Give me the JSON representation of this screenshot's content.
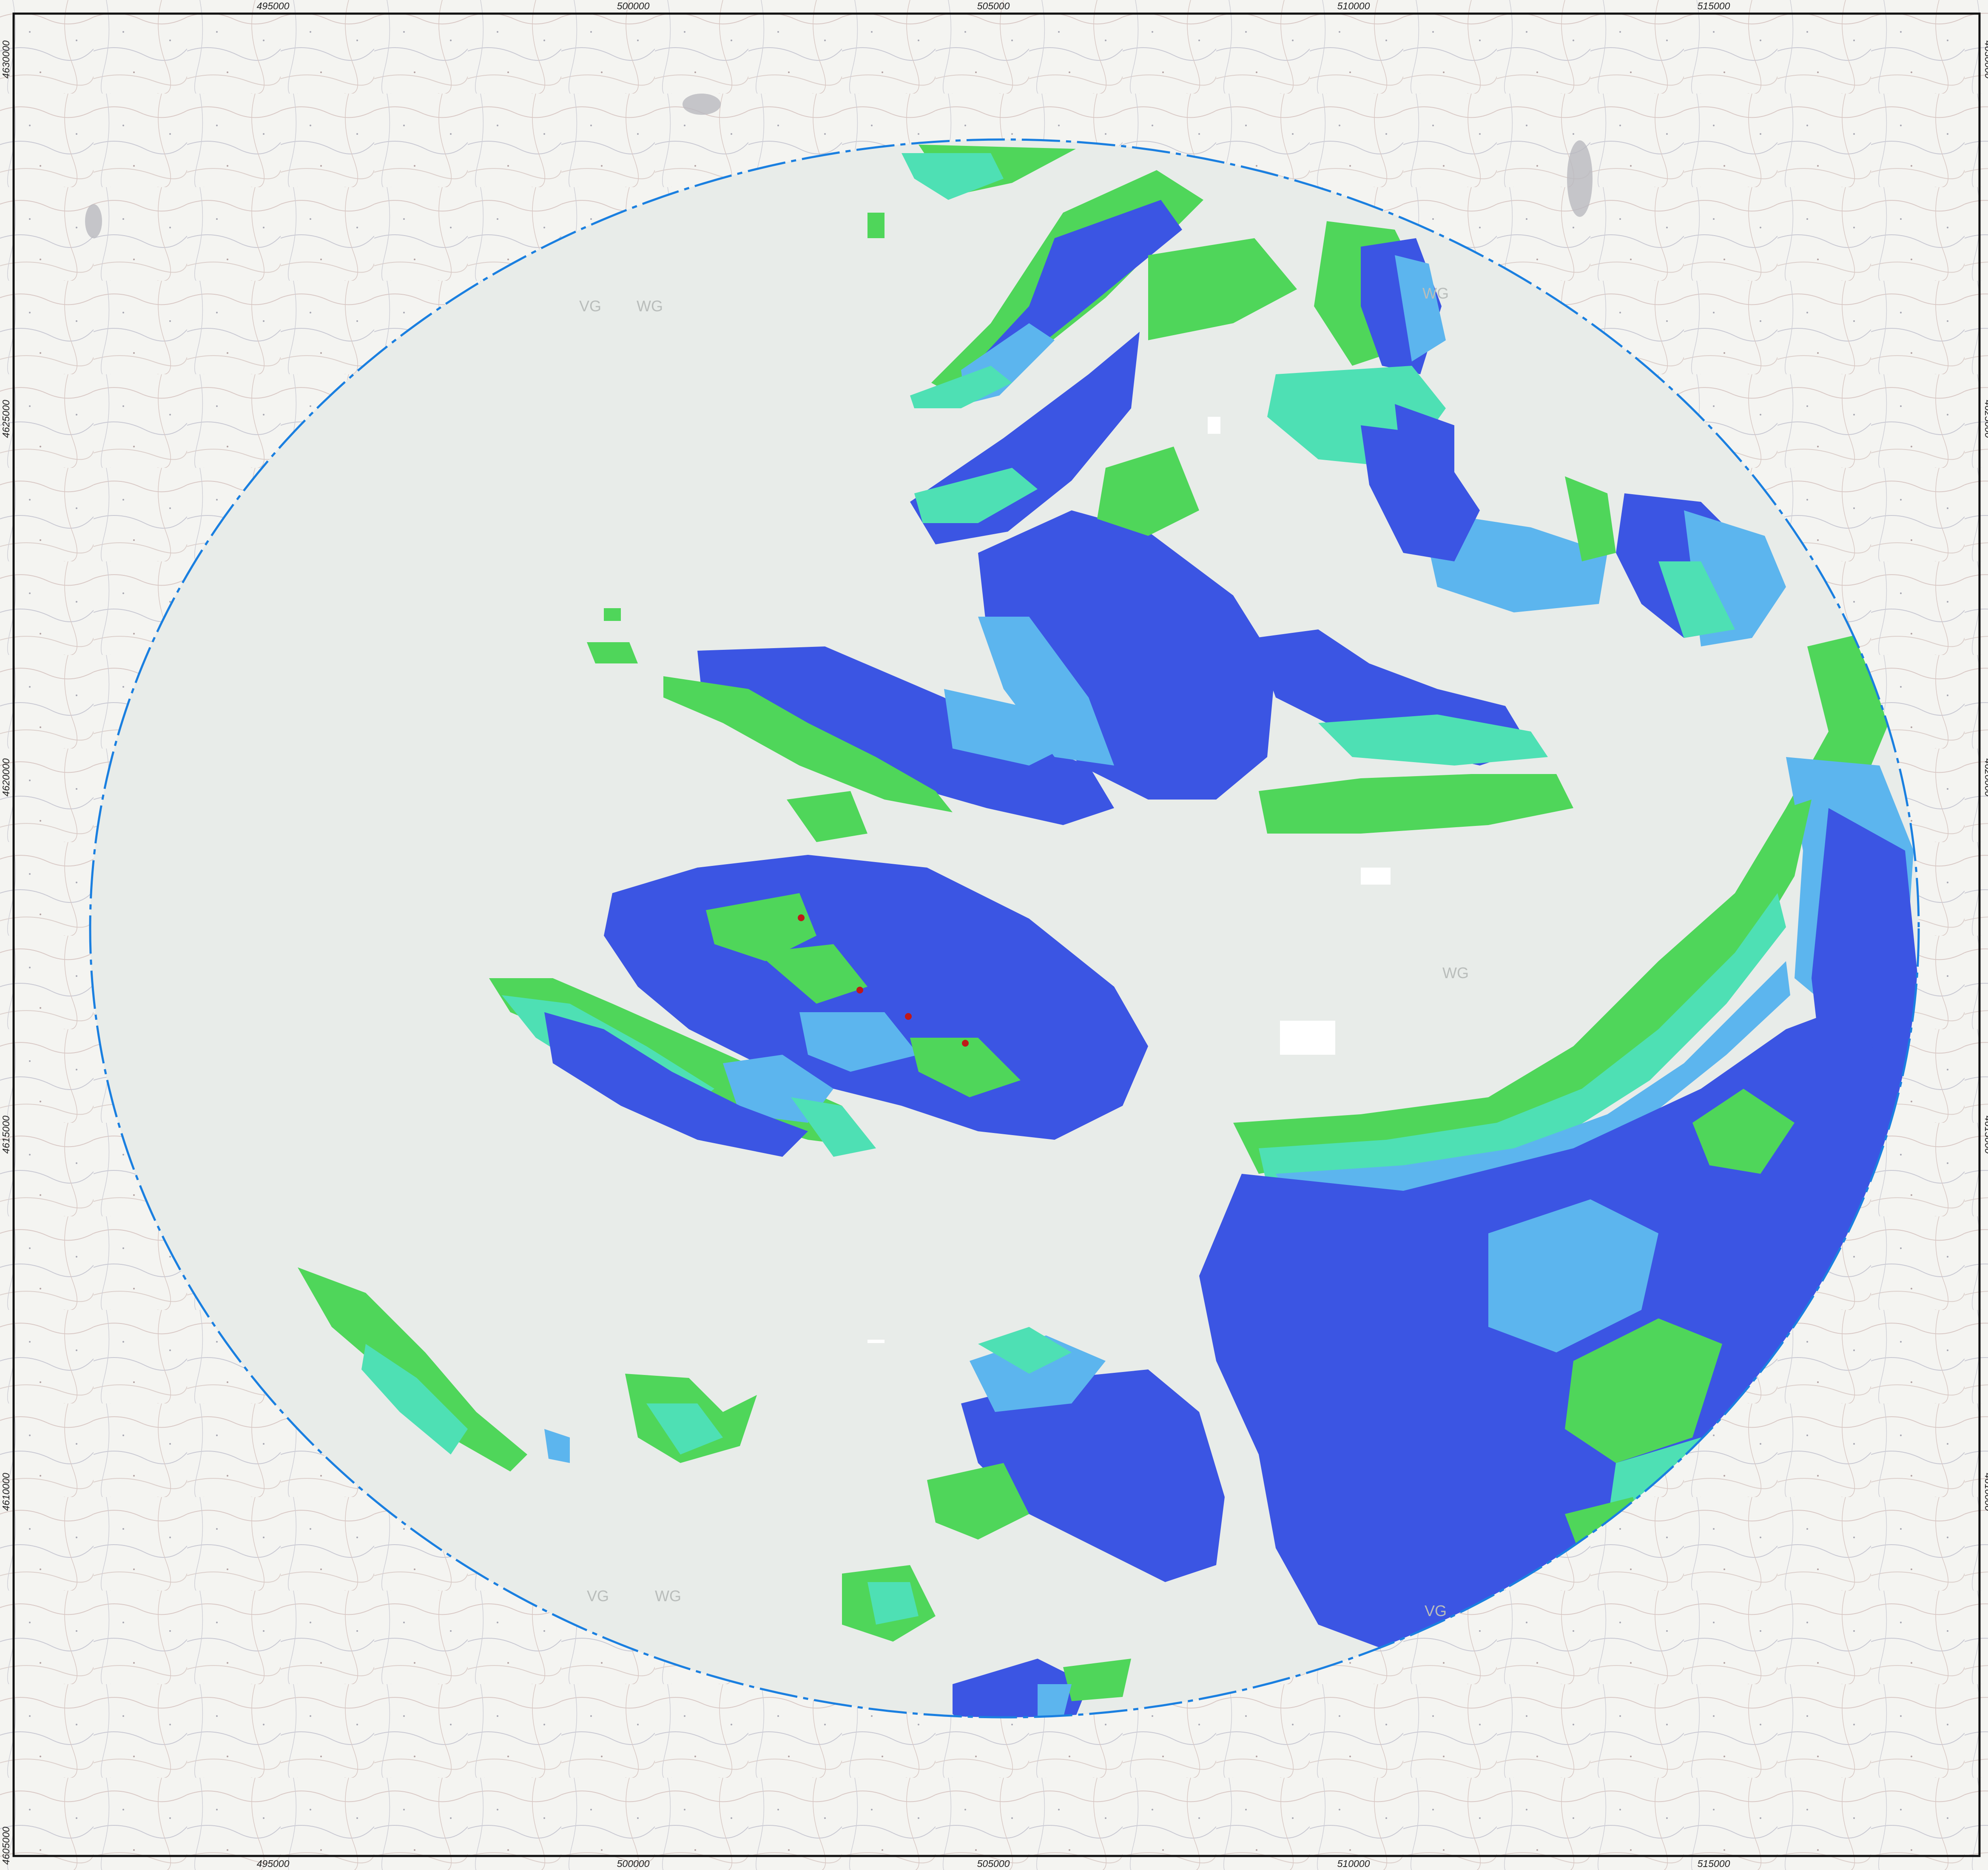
{
  "map": {
    "x_ticks": [
      "495000",
      "500000",
      "505000",
      "510000",
      "515000"
    ],
    "y_ticks": [
      "4630000",
      "4625000",
      "4620000",
      "4615000",
      "4610000",
      "4605000"
    ],
    "zone_labels": [
      {
        "vg": "VG",
        "wg": "WG"
      },
      {
        "vg": "VG",
        "wg": "WG"
      }
    ],
    "single_labels": [
      "WG",
      "WG",
      "VG"
    ],
    "colors": {
      "basemap": "#f4f4f1",
      "study_area": "#e8ece9",
      "boundary": "#1a7fe0",
      "class_dark_blue": "#3b55e3",
      "class_light_blue": "#5cb5ee",
      "class_aqua": "#4ee0b4",
      "class_green": "#4fd65a",
      "points": "#c01818"
    },
    "points_count": 4
  }
}
